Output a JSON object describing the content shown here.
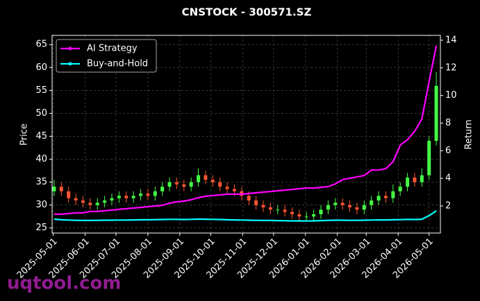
{
  "chart_data": {
    "type": "candlestick",
    "title": "CNSTOCK - 300571.SZ",
    "ylabel": "Price",
    "y2label": "Return",
    "watermark": "uqtool.com",
    "up_color": "#44ff44",
    "down_color": "#ff5533",
    "grid": true,
    "legend": "upper left",
    "x": [
      "2025-05-02",
      "2025-05-09",
      "2025-05-16",
      "2025-05-23",
      "2025-05-30",
      "2025-06-06",
      "2025-06-13",
      "2025-06-20",
      "2025-06-27",
      "2025-07-04",
      "2025-07-11",
      "2025-07-18",
      "2025-07-25",
      "2025-08-01",
      "2025-08-08",
      "2025-08-15",
      "2025-08-22",
      "2025-08-29",
      "2025-09-05",
      "2025-09-12",
      "2025-09-19",
      "2025-09-26",
      "2025-10-03",
      "2025-10-10",
      "2025-10-17",
      "2025-10-24",
      "2025-10-31",
      "2025-11-07",
      "2025-11-14",
      "2025-11-21",
      "2025-11-28",
      "2025-12-05",
      "2025-12-12",
      "2025-12-19",
      "2025-12-26",
      "2026-01-02",
      "2026-01-09",
      "2026-01-16",
      "2026-01-23",
      "2026-01-30",
      "2026-02-06",
      "2026-02-13",
      "2026-02-20",
      "2026-02-27",
      "2026-03-06",
      "2026-03-13",
      "2026-03-20",
      "2026-03-27",
      "2026-04-03",
      "2026-04-10",
      "2026-04-17",
      "2026-04-24",
      "2026-05-01",
      "2026-05-08"
    ],
    "open": [
      33,
      34,
      33,
      31.5,
      31,
      30.5,
      30,
      30.5,
      31,
      31.5,
      32,
      31.5,
      32,
      32.5,
      32,
      33,
      34,
      35,
      34.5,
      34,
      35,
      36.5,
      35.5,
      35,
      34,
      33.5,
      33,
      32,
      31,
      30,
      29.5,
      29,
      29,
      28.5,
      28,
      27.5,
      27.5,
      28,
      29,
      30,
      30.5,
      30,
      29.5,
      29,
      30,
      31,
      32,
      31.5,
      33,
      34,
      36,
      35,
      36.5,
      44
    ],
    "high": [
      35.5,
      35,
      34,
      32.5,
      32,
      31.5,
      31.5,
      32,
      32.5,
      33,
      33,
      33,
      33.5,
      33.5,
      34,
      35,
      36,
      36,
      35.5,
      36,
      38,
      37.5,
      36.5,
      36,
      35,
      34.5,
      34,
      33,
      32,
      31,
      30.5,
      30,
      30,
      29.5,
      29,
      28.5,
      29,
      30,
      31,
      31.5,
      31.5,
      31,
      30.5,
      31,
      32,
      33,
      33,
      34.5,
      35,
      37,
      37,
      38,
      45,
      59
    ],
    "low": [
      32,
      32,
      30.5,
      30,
      29.5,
      29,
      29,
      29.5,
      30,
      30.5,
      30.5,
      30.5,
      31,
      31,
      31,
      32,
      33,
      33.5,
      33,
      33,
      34,
      34.5,
      34,
      33,
      32.5,
      32,
      31,
      30,
      29,
      28.5,
      28,
      28,
      27.5,
      27,
      26.5,
      26.5,
      26.5,
      27,
      28,
      29,
      29,
      28.5,
      28,
      28,
      29,
      30,
      30.5,
      30.5,
      32,
      33,
      34,
      34,
      35.5,
      43
    ],
    "close": [
      34,
      33,
      31.5,
      31,
      30.5,
      30,
      30.5,
      31,
      31.5,
      32,
      31.5,
      32,
      32.5,
      32,
      33,
      34,
      35,
      34.5,
      34,
      35,
      36.5,
      35.5,
      35,
      34,
      33.5,
      33,
      32,
      31,
      30,
      29.5,
      29,
      29,
      28.5,
      28,
      27.5,
      27.5,
      28,
      29,
      30,
      30.5,
      30,
      29.5,
      29,
      30,
      31,
      32,
      31.5,
      33,
      34,
      36,
      35,
      36.5,
      44,
      56
    ],
    "series": [
      {
        "name": "AI Strategy",
        "color": "#ff00ff",
        "axis": "y2",
        "values": [
          1.4,
          1.4,
          1.45,
          1.5,
          1.5,
          1.6,
          1.6,
          1.65,
          1.7,
          1.75,
          1.8,
          1.85,
          1.9,
          1.95,
          2.0,
          2.05,
          2.2,
          2.3,
          2.35,
          2.45,
          2.6,
          2.7,
          2.75,
          2.8,
          2.85,
          2.85,
          2.85,
          2.9,
          2.95,
          3.0,
          3.05,
          3.1,
          3.15,
          3.2,
          3.25,
          3.3,
          3.3,
          3.35,
          3.4,
          3.6,
          3.9,
          4.0,
          4.1,
          4.2,
          4.6,
          4.6,
          4.7,
          5.2,
          6.4,
          6.8,
          7.4,
          8.3,
          11,
          13.6
        ]
      },
      {
        "name": "Buy-and-Hold",
        "color": "#00ffff",
        "axis": "y2",
        "values": [
          1.05,
          1.0,
          0.98,
          0.96,
          0.95,
          0.95,
          0.96,
          0.97,
          0.97,
          0.98,
          0.98,
          0.99,
          1.0,
          1.0,
          1.01,
          1.02,
          1.03,
          1.03,
          1.02,
          1.03,
          1.05,
          1.04,
          1.03,
          1.02,
          1.0,
          0.99,
          0.98,
          0.97,
          0.96,
          0.95,
          0.95,
          0.94,
          0.93,
          0.92,
          0.92,
          0.91,
          0.92,
          0.94,
          0.96,
          0.97,
          0.97,
          0.96,
          0.96,
          0.97,
          0.98,
          0.99,
          0.99,
          1.0,
          1.01,
          1.03,
          1.02,
          1.04,
          1.3,
          1.65
        ]
      }
    ],
    "xlim": [
      "2025-04-30",
      "2026-05-12"
    ],
    "xticks": [
      "2025-05-01",
      "2025-06-01",
      "2025-07-01",
      "2025-08-01",
      "2025-09-01",
      "2025-10-01",
      "2025-11-01",
      "2025-12-01",
      "2026-01-01",
      "2026-02-01",
      "2026-03-01",
      "2026-04-01",
      "2026-05-01"
    ],
    "ylim": [
      23.9,
      67
    ],
    "yticks": [
      25,
      30,
      35,
      40,
      45,
      50,
      55,
      60,
      65
    ],
    "y2lim": [
      0.04,
      14.35
    ],
    "y2ticks": [
      2,
      4,
      6,
      8,
      10,
      12,
      14
    ]
  }
}
